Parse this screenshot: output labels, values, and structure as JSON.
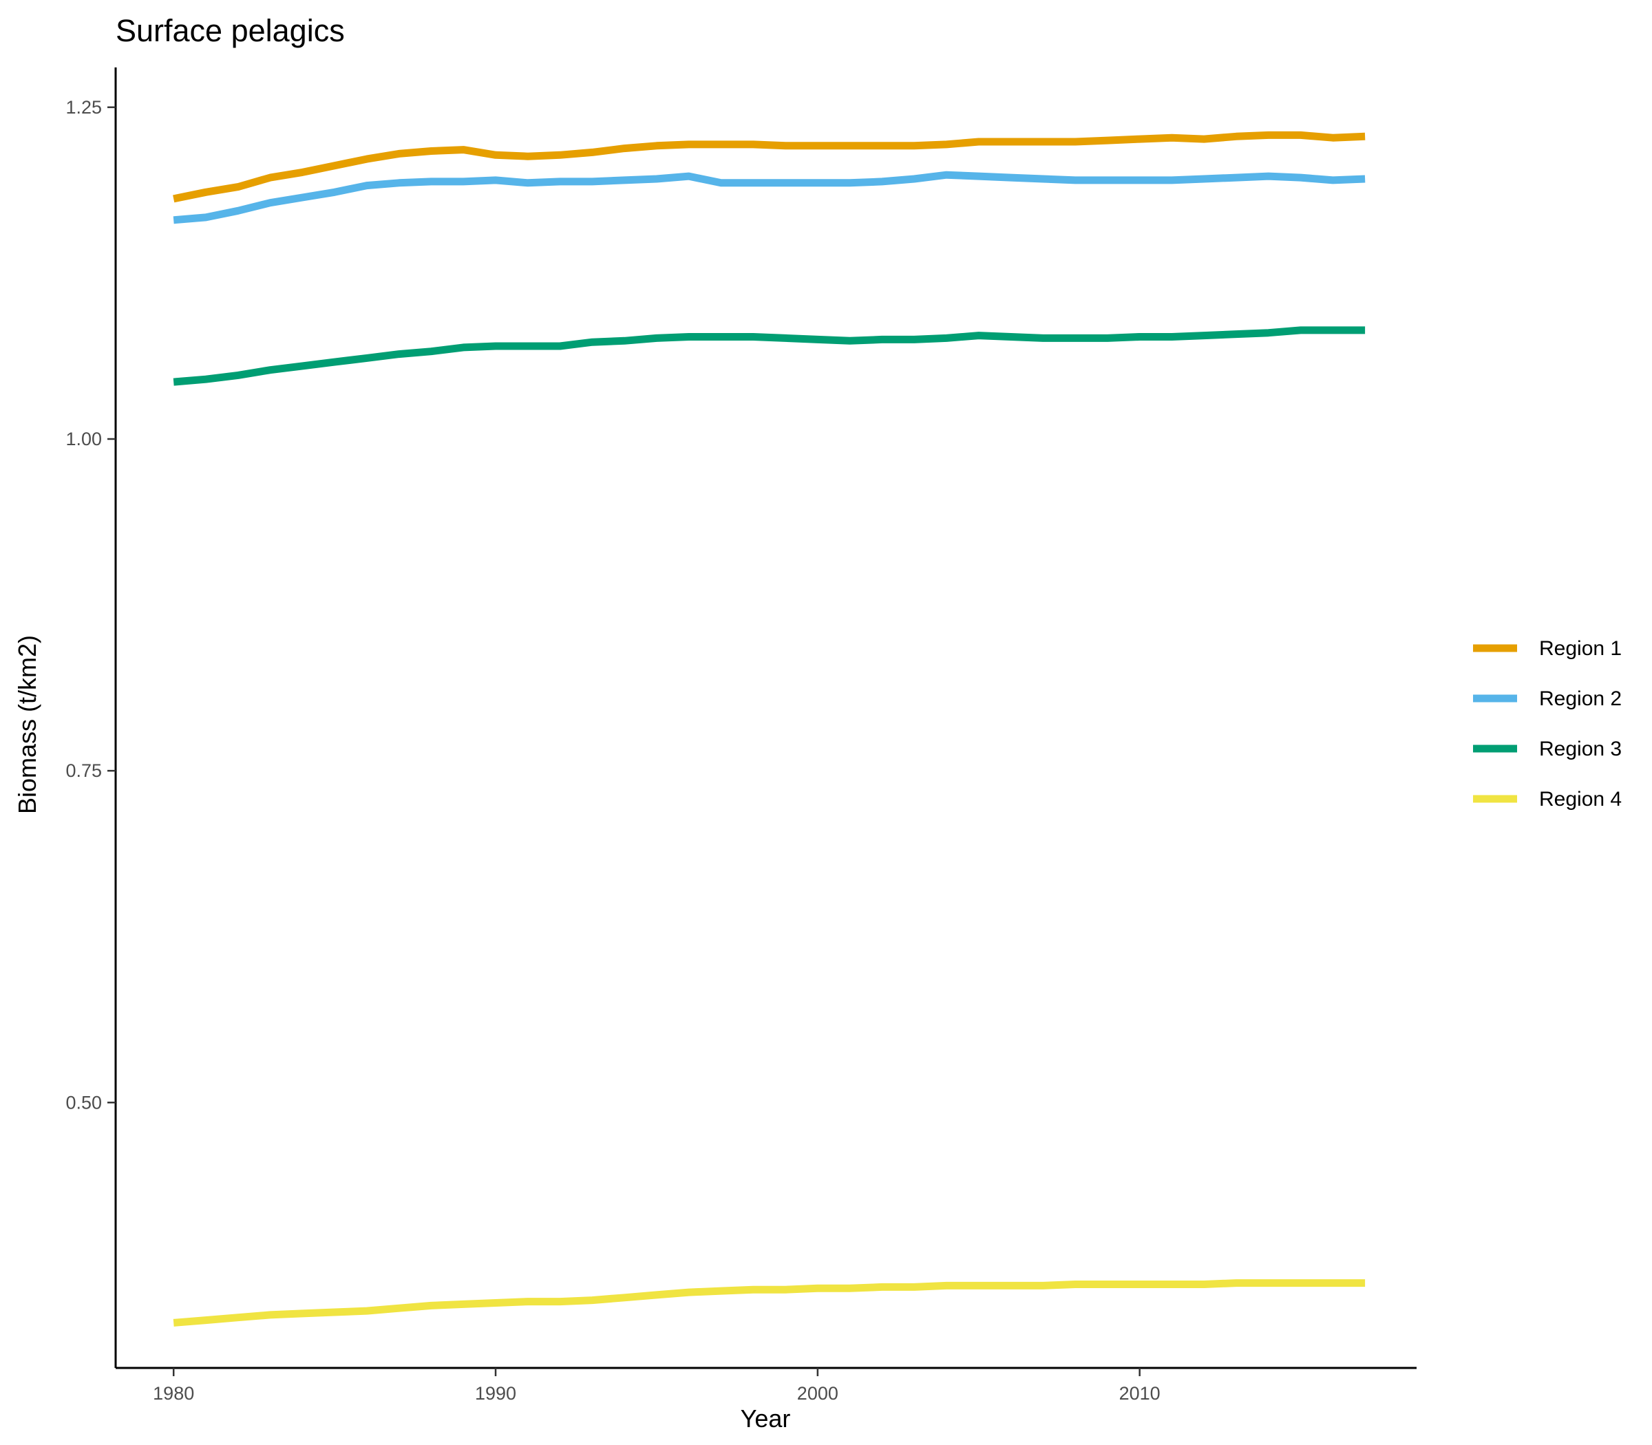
{
  "chart_data": {
    "type": "line",
    "title": "Surface pelagics",
    "xlabel": "Year",
    "ylabel": "Biomass (t/km2)",
    "xlim": [
      1978.2,
      2018.6
    ],
    "ylim": [
      0.3,
      1.28
    ],
    "x_ticks": [
      1980,
      1990,
      2000,
      2010
    ],
    "x_tick_labels": [
      "1980",
      "1990",
      "2000",
      "2010"
    ],
    "y_ticks": [
      0.5,
      0.75,
      1.0,
      1.25
    ],
    "y_tick_labels": [
      "0.50",
      "0.75",
      "1.00",
      "1.25"
    ],
    "grid": false,
    "legend_position": "right",
    "x": [
      1980,
      1981,
      1982,
      1983,
      1984,
      1985,
      1986,
      1987,
      1988,
      1989,
      1990,
      1991,
      1992,
      1993,
      1994,
      1995,
      1996,
      1997,
      1998,
      1999,
      2000,
      2001,
      2002,
      2003,
      2004,
      2005,
      2006,
      2007,
      2008,
      2009,
      2010,
      2011,
      2012,
      2013,
      2014,
      2015,
      2016,
      2017
    ],
    "series": [
      {
        "name": "Region 1",
        "color": "#E69F00",
        "values": [
          1.181,
          1.186,
          1.19,
          1.197,
          1.201,
          1.206,
          1.211,
          1.215,
          1.217,
          1.218,
          1.214,
          1.213,
          1.214,
          1.216,
          1.219,
          1.221,
          1.222,
          1.222,
          1.222,
          1.221,
          1.221,
          1.221,
          1.221,
          1.221,
          1.222,
          1.224,
          1.224,
          1.224,
          1.224,
          1.225,
          1.226,
          1.227,
          1.226,
          1.228,
          1.229,
          1.229,
          1.227,
          1.228
        ]
      },
      {
        "name": "Region 2",
        "color": "#56B4E9",
        "values": [
          1.165,
          1.167,
          1.172,
          1.178,
          1.182,
          1.186,
          1.191,
          1.193,
          1.194,
          1.194,
          1.195,
          1.193,
          1.194,
          1.194,
          1.195,
          1.196,
          1.198,
          1.193,
          1.193,
          1.193,
          1.193,
          1.193,
          1.194,
          1.196,
          1.199,
          1.198,
          1.197,
          1.196,
          1.195,
          1.195,
          1.195,
          1.195,
          1.196,
          1.197,
          1.198,
          1.197,
          1.195,
          1.196
        ]
      },
      {
        "name": "Region 3",
        "color": "#009E73",
        "values": [
          1.043,
          1.045,
          1.048,
          1.052,
          1.055,
          1.058,
          1.061,
          1.064,
          1.066,
          1.069,
          1.07,
          1.07,
          1.07,
          1.073,
          1.074,
          1.076,
          1.077,
          1.077,
          1.077,
          1.076,
          1.075,
          1.074,
          1.075,
          1.075,
          1.076,
          1.078,
          1.077,
          1.076,
          1.076,
          1.076,
          1.077,
          1.077,
          1.078,
          1.079,
          1.08,
          1.082,
          1.082,
          1.082
        ]
      },
      {
        "name": "Region 4",
        "color": "#F0E442",
        "values": [
          0.334,
          0.336,
          0.338,
          0.34,
          0.341,
          0.342,
          0.343,
          0.345,
          0.347,
          0.348,
          0.349,
          0.35,
          0.35,
          0.351,
          0.353,
          0.355,
          0.357,
          0.358,
          0.359,
          0.359,
          0.36,
          0.36,
          0.361,
          0.361,
          0.362,
          0.362,
          0.362,
          0.362,
          0.363,
          0.363,
          0.363,
          0.363,
          0.363,
          0.364,
          0.364,
          0.364,
          0.364,
          0.364
        ]
      }
    ]
  }
}
